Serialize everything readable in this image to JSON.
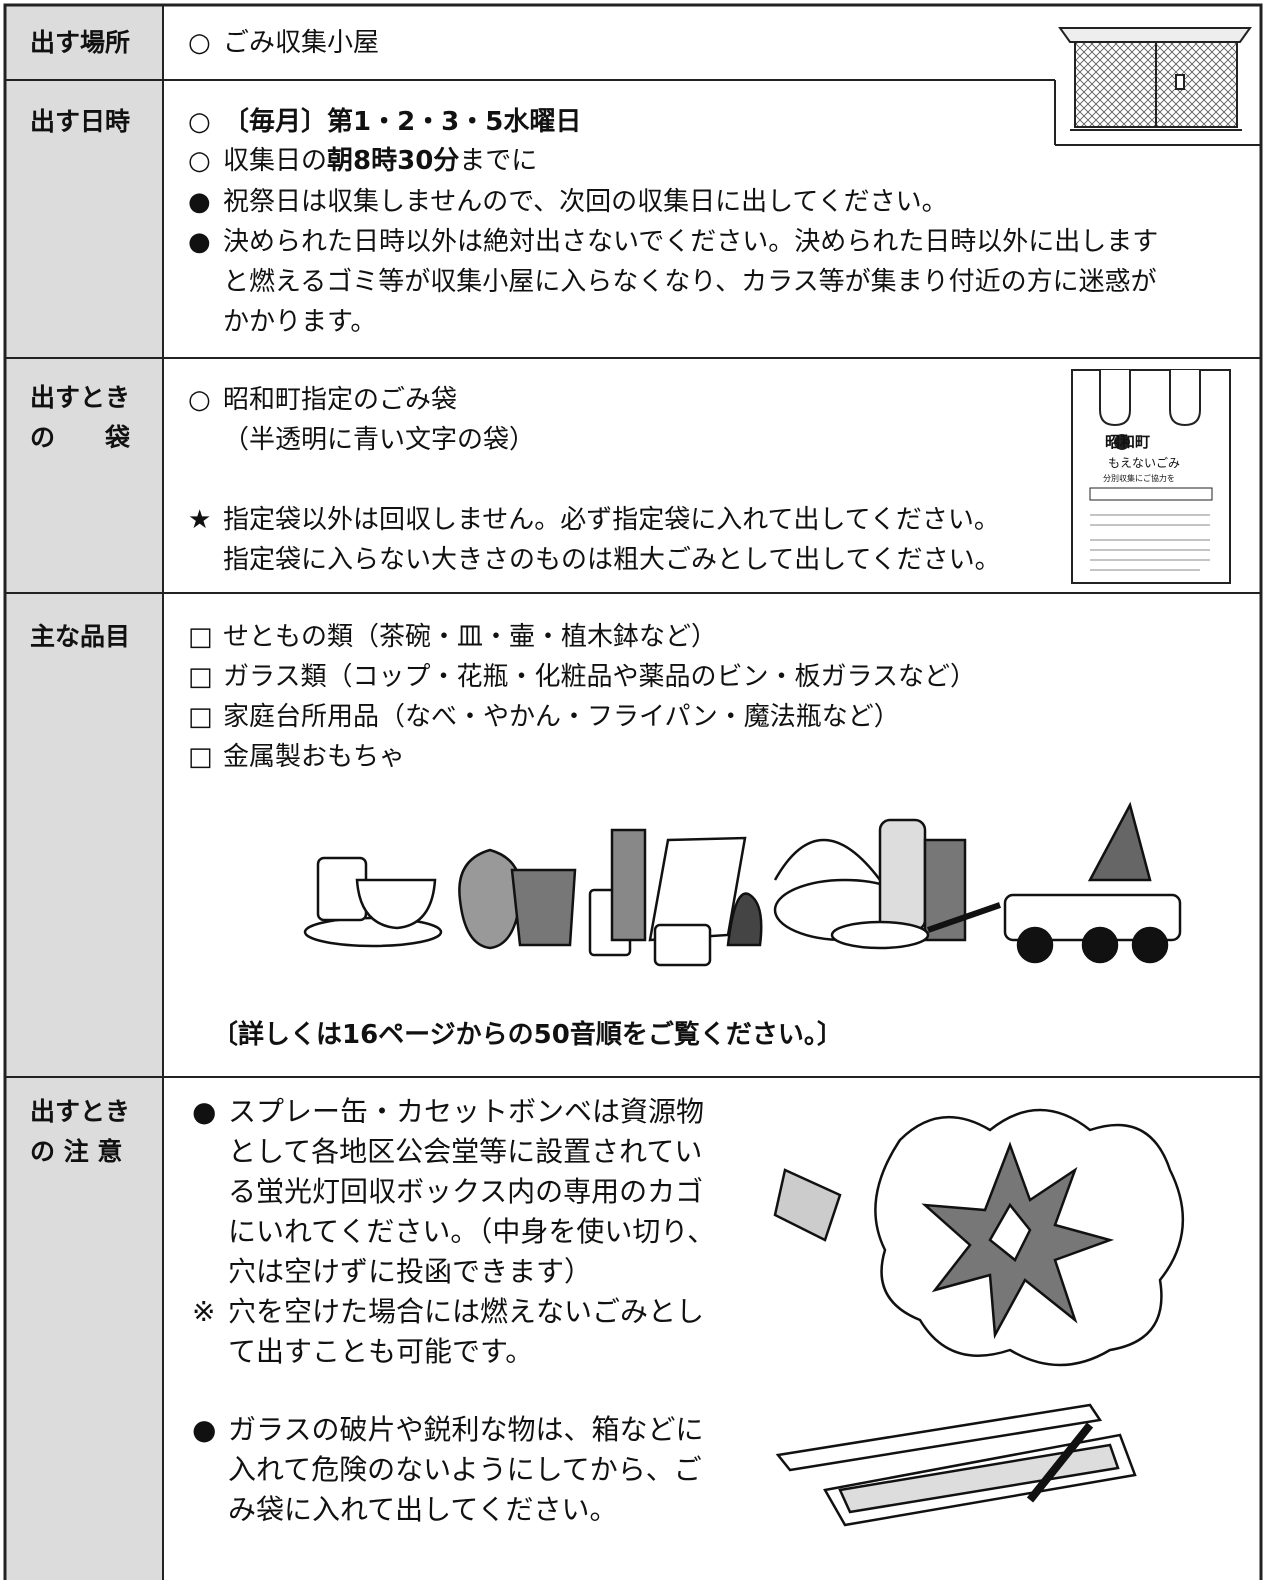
{
  "rows": [
    {
      "label": [
        "出す場所"
      ],
      "items": [
        {
          "marker": "○",
          "lines": [
            "ごみ収集小屋"
          ]
        }
      ]
    },
    {
      "label": [
        "出す日時"
      ],
      "items": [
        {
          "marker": "○",
          "lines": [
            [
              {
                "text": "〔毎月〕第1・2・3・5水曜日",
                "bold": true
              }
            ]
          ]
        },
        {
          "marker": "○",
          "lines": [
            [
              {
                "text": "収集日の"
              },
              {
                "text": "朝8時30分",
                "bold": true
              },
              {
                "text": "までに"
              }
            ]
          ]
        },
        {
          "marker": "●",
          "lines": [
            "祝祭日は収集しませんので、次回の収集日に出してください。"
          ]
        },
        {
          "marker": "●",
          "lines": [
            "決められた日時以外は絶対出さないでください。決められた日時以外に出します",
            "と燃えるゴミ等が収集小屋に入らなくなり、カラス等が集まり付近の方に迷惑が",
            "かかります。"
          ]
        }
      ]
    },
    {
      "label": [
        "出すとき",
        "の　　袋"
      ],
      "items": [
        {
          "marker": "○",
          "lines": [
            "昭和町指定のごみ袋",
            "（半透明に青い文字の袋）"
          ]
        },
        {
          "marker": "★",
          "lines": [
            "指定袋以外は回収しません。必ず指定袋に入れて出してください。",
            "指定袋に入らない大きさのものは粗大ごみとして出してください。"
          ]
        }
      ]
    },
    {
      "label": [
        "主な品目"
      ],
      "items": [
        {
          "marker": "□",
          "lines": [
            "せともの類（茶碗・皿・壷・植木鉢など）"
          ]
        },
        {
          "marker": "□",
          "lines": [
            "ガラス類（コップ・花瓶・化粧品や薬品のビン・板ガラスなど）"
          ]
        },
        {
          "marker": "□",
          "lines": [
            "家庭台所用品（なべ・やかん・フライパン・魔法瓶など）"
          ]
        },
        {
          "marker": "□",
          "lines": [
            "金属製おもちゃ"
          ]
        }
      ],
      "note": "〔詳しくは16ページからの50音順をご覧ください。〕"
    },
    {
      "label": [
        "出すとき",
        "の 注 意"
      ],
      "items": [
        {
          "marker": "●",
          "lines": [
            "スプレー缶・カセットボンベは資源物",
            "として各地区公会堂等に設置されてい",
            "る蛍光灯回収ボックス内の専用のカゴ",
            "にいれてください。（中身を使い切り、",
            "穴は空けずに投函できます）"
          ]
        },
        {
          "marker": "※",
          "lines": [
            "穴を空けた場合には燃えないごみとし",
            "て出すことも可能です。"
          ]
        },
        {
          "marker": "●",
          "lines": [
            "ガラスの破片や鋭利な物は、箱などに",
            "入れて危険のないようにしてから、ご",
            "み袋に入れて出してください。"
          ]
        }
      ]
    }
  ],
  "bag": {
    "town": "昭和町",
    "kind": "もえないごみ",
    "slogan": "分別収集にご協力を"
  }
}
